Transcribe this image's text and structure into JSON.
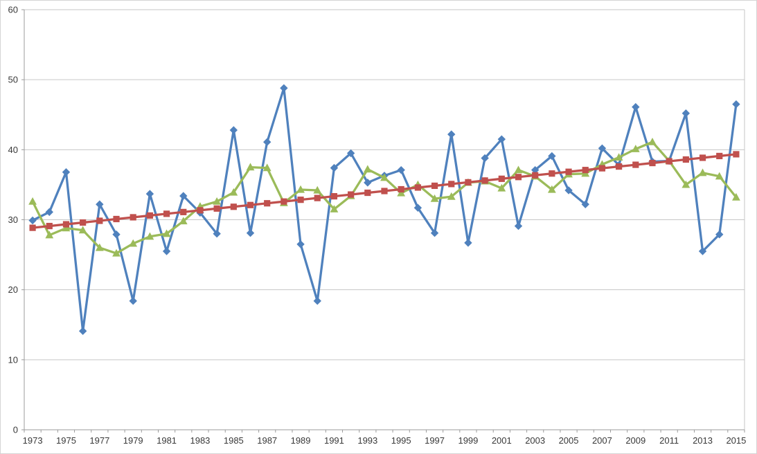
{
  "chart_data": {
    "type": "line",
    "title": "",
    "xlabel": "",
    "ylabel": "",
    "ylim": [
      0,
      60
    ],
    "y_ticks": [
      0,
      10,
      20,
      30,
      40,
      50,
      60
    ],
    "grid": true,
    "legend": "none",
    "years": [
      1973,
      1974,
      1975,
      1976,
      1977,
      1978,
      1979,
      1980,
      1981,
      1982,
      1983,
      1984,
      1985,
      1986,
      1987,
      1988,
      1989,
      1990,
      1991,
      1992,
      1993,
      1994,
      1995,
      1996,
      1997,
      1998,
      1999,
      2000,
      2001,
      2002,
      2003,
      2004,
      2005,
      2006,
      2007,
      2008,
      2009,
      2010,
      2011,
      2012,
      2013,
      2014,
      2015
    ],
    "x_tick_labels": [
      "1973",
      "1975",
      "1977",
      "1979",
      "1981",
      "1983",
      "1985",
      "1987",
      "1989",
      "1991",
      "1993",
      "1995",
      "1997",
      "1999",
      "2001",
      "2003",
      "2005",
      "2007",
      "2009",
      "2011",
      "2013",
      "2015"
    ],
    "series": [
      {
        "name": "blue-diamond-series",
        "color": "#4F81BD",
        "marker": "diamond",
        "values": [
          29.9,
          31.1,
          36.8,
          14.1,
          32.2,
          27.9,
          18.4,
          33.7,
          25.5,
          33.4,
          31.0,
          28.0,
          42.8,
          28.1,
          41.1,
          48.8,
          26.5,
          18.4,
          37.4,
          39.5,
          35.3,
          36.3,
          37.1,
          31.7,
          28.1,
          42.2,
          26.7,
          38.8,
          41.5,
          29.1,
          37.1,
          39.1,
          34.2,
          32.2,
          40.2,
          37.8,
          46.1,
          38.3,
          38.4,
          45.2,
          25.5,
          27.9,
          46.5
        ]
      },
      {
        "name": "green-triangle-series",
        "color": "#9BBB59",
        "marker": "triangle",
        "values": [
          32.6,
          27.8,
          28.8,
          28.5,
          26.0,
          25.2,
          26.6,
          27.6,
          28.0,
          29.8,
          31.9,
          32.6,
          33.9,
          37.5,
          37.4,
          32.4,
          34.3,
          34.2,
          31.5,
          33.4,
          37.2,
          36.0,
          33.8,
          35.0,
          33.0,
          33.3,
          35.3,
          35.5,
          34.5,
          37.1,
          36.2,
          34.3,
          36.5,
          36.6,
          37.9,
          38.9,
          40.1,
          41.1,
          38.4,
          35.0,
          36.7,
          36.2,
          33.2
        ]
      },
      {
        "name": "red-square-series",
        "color": "#C0504D",
        "marker": "square",
        "values": [
          28.85,
          29.1,
          29.35,
          29.6,
          29.85,
          30.1,
          30.35,
          30.6,
          30.85,
          31.1,
          31.35,
          31.6,
          31.85,
          32.1,
          32.35,
          32.6,
          32.85,
          33.1,
          33.35,
          33.6,
          33.85,
          34.1,
          34.35,
          34.6,
          34.85,
          35.1,
          35.35,
          35.6,
          35.85,
          36.1,
          36.35,
          36.6,
          36.85,
          37.1,
          37.35,
          37.6,
          37.85,
          38.1,
          38.35,
          38.6,
          38.85,
          39.1,
          39.35
        ]
      }
    ],
    "colors": {
      "gridline": "#c6c6c6",
      "axis": "#9b9b9b",
      "plot_right_border": "#c6c6c6",
      "label_text": "#383838",
      "background": "#ffffff"
    }
  }
}
